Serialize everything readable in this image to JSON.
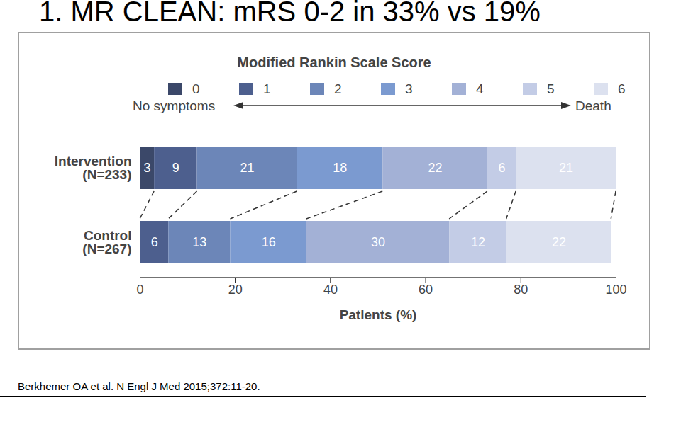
{
  "chart_data": {
    "type": "bar",
    "title": "1. MR CLEAN: mRS 0-2 in 33% vs 19%",
    "legend_title": "Modified Rankin Scale Score",
    "scale_left_label": "No symptoms",
    "scale_right_label": "Death",
    "x_label": "Patients (%)",
    "source": "Berkhemer OA et al. N Engl J Med 2015;372:11-20.",
    "categories": [
      "Intervention\n(N=233)",
      "Control\n(N=267)"
    ],
    "series": [
      {
        "name": "0",
        "color": "#3b4869",
        "values": [
          3,
          0
        ]
      },
      {
        "name": "1",
        "color": "#4d5f8e",
        "values": [
          9,
          6
        ]
      },
      {
        "name": "2",
        "color": "#6c86b8",
        "values": [
          21,
          13
        ]
      },
      {
        "name": "3",
        "color": "#7b9ad0",
        "values": [
          18,
          16
        ]
      },
      {
        "name": "4",
        "color": "#a3b1d6",
        "values": [
          22,
          30
        ]
      },
      {
        "name": "5",
        "color": "#c3cce6",
        "values": [
          6,
          12
        ]
      },
      {
        "name": "6",
        "color": "#dce1ef",
        "values": [
          21,
          22
        ]
      }
    ],
    "xlim": [
      0,
      100
    ],
    "xticks": [
      0,
      20,
      40,
      60,
      80,
      100
    ],
    "orientation": "horizontal",
    "stacked": true,
    "data_labels": true,
    "legend": "top",
    "grid": false
  }
}
